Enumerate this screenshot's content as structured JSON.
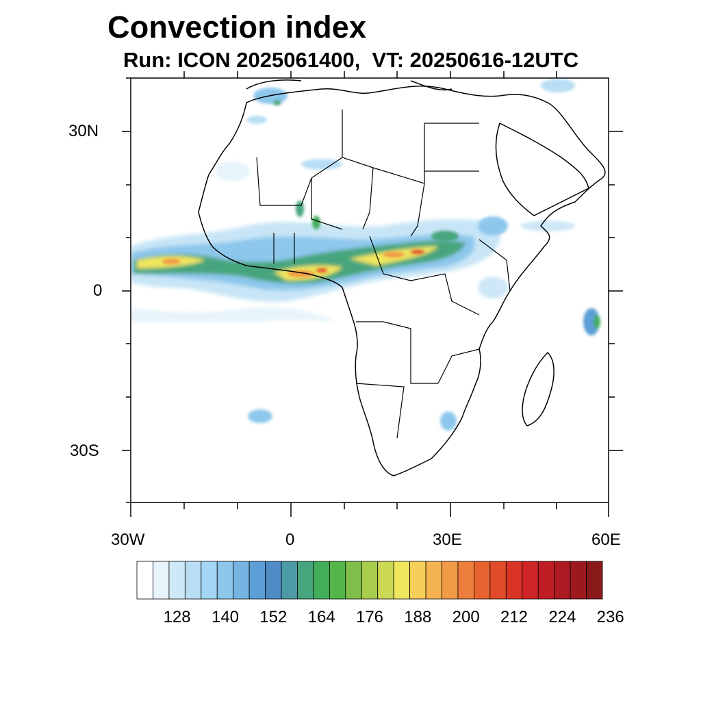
{
  "title": "Convection index",
  "subtitle": "Run: ICON 2025061400,  VT: 20250616-12UTC",
  "map": {
    "region": "Africa",
    "lon_range": [
      -30,
      60
    ],
    "lat_range": [
      -40,
      40
    ],
    "lat_labels": [
      "30N",
      "0",
      "30S"
    ],
    "lon_labels": [
      "30W",
      "0",
      "30E",
      "60E"
    ]
  },
  "colorbar": {
    "labels": [
      "128",
      "140",
      "152",
      "164",
      "176",
      "188",
      "200",
      "212",
      "224",
      "236"
    ],
    "colors": [
      "#ffffff",
      "#e8f4fb",
      "#cfe8f7",
      "#b9def4",
      "#a3d6f5",
      "#8ec7ec",
      "#76b5e3",
      "#5b9fd6",
      "#4f8cc6",
      "#4b9aa6",
      "#46a57d",
      "#43ae5a",
      "#52b748",
      "#7fbf4a",
      "#a8cc4c",
      "#cbd854",
      "#efe65d",
      "#f6cf58",
      "#f4b350",
      "#f19a45",
      "#ed7e3b",
      "#e8632f",
      "#e24b29",
      "#da3427",
      "#cf2426",
      "#c01c24",
      "#ae1a22",
      "#9c1a1e",
      "#8a1a1a"
    ]
  }
}
